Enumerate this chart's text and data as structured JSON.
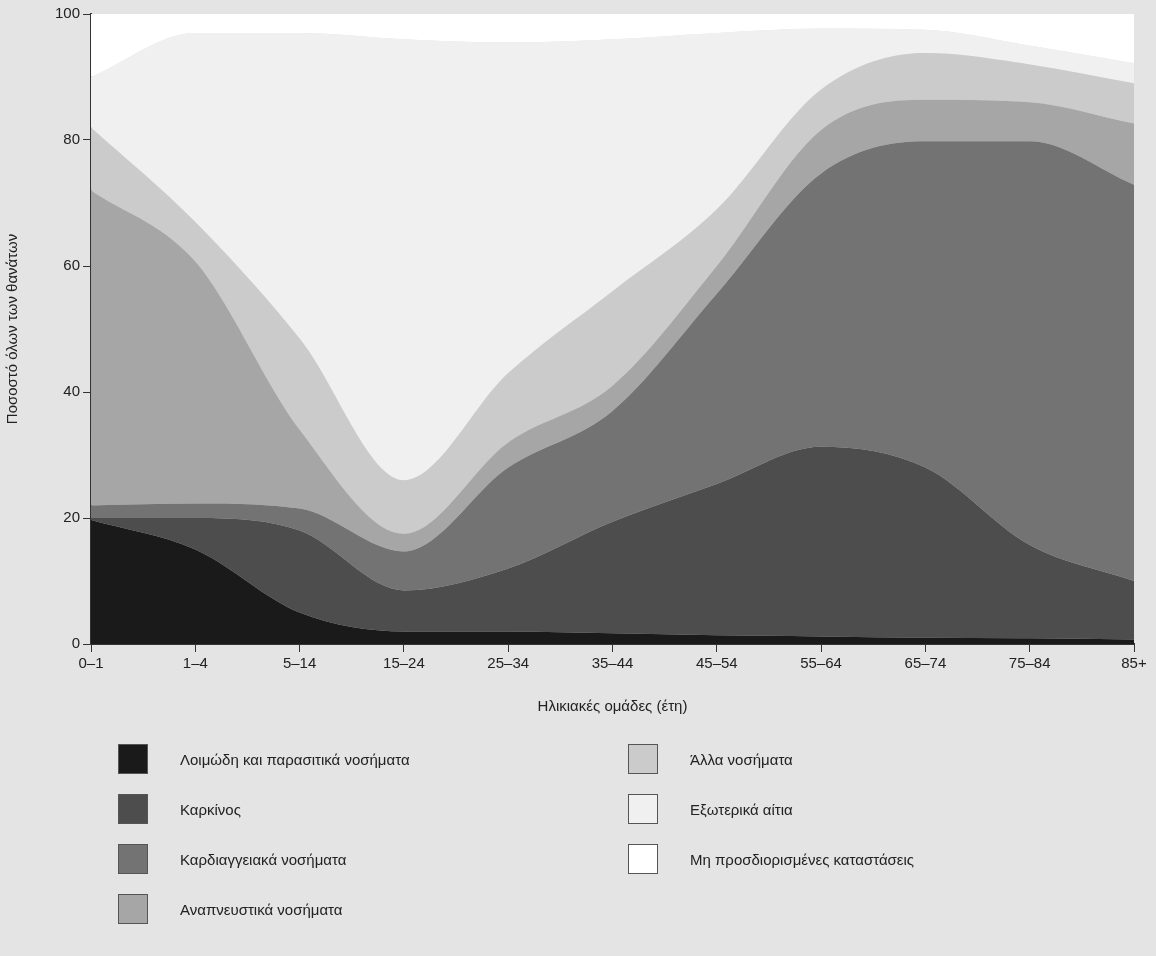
{
  "chart_data": {
    "type": "area",
    "stacked": true,
    "xlabel": "Ηλικιακές ομάδες (έτη)",
    "ylabel": "Ποσοστό όλων των θανάτων",
    "categories": [
      "0–1",
      "1–4",
      "5–14",
      "15–24",
      "25–34",
      "35–44",
      "45–54",
      "55–64",
      "65–74",
      "75–84",
      "85+"
    ],
    "ylim": [
      0,
      100
    ],
    "yticks": [
      0,
      20,
      40,
      60,
      80,
      100
    ],
    "grid": false,
    "legend": "bottom",
    "series": [
      {
        "name": "Λοιμώδη και παρασιτικά νοσήματα",
        "color": "#1a1a1a",
        "values": [
          19.7,
          15,
          5,
          2,
          2,
          1.7,
          1.4,
          1.2,
          1,
          0.9,
          0.7
        ]
      },
      {
        "name": "Καρκίνος",
        "color": "#4d4d4d",
        "values": [
          0.3,
          5,
          13,
          6.5,
          10,
          17.7,
          24,
          30.1,
          27,
          14.8,
          9.3
        ]
      },
      {
        "name": "Καρδιαγγειακά νοσήματα",
        "color": "#737373",
        "values": [
          2,
          2.3,
          3.5,
          6.2,
          16,
          17.6,
          30.2,
          43.4,
          51.8,
          64.1,
          62.9
        ]
      },
      {
        "name": "Αναπνευστικά νοσήματα",
        "color": "#a6a6a6",
        "values": [
          50,
          38.4,
          12.5,
          2.8,
          4,
          4,
          4.4,
          6.9,
          6.6,
          6.2,
          9.7
        ]
      },
      {
        "name": "Άλλα νοσήματα",
        "color": "#cbcbcb",
        "values": [
          10,
          6.3,
          14.5,
          8.5,
          11,
          15,
          9,
          6.4,
          7.4,
          6,
          6.4
        ]
      },
      {
        "name": "Εξωτερικά αίτια",
        "color": "#f0f0f0",
        "values": [
          8,
          30,
          48.5,
          70,
          52.5,
          40,
          28,
          9.7,
          3.7,
          3,
          3.2
        ]
      },
      {
        "name": "Μη προσδιορισμένες καταστάσεις",
        "color": "#ffffff",
        "values": [
          10,
          3,
          3,
          4,
          4.5,
          4,
          3,
          2.3,
          2.5,
          5,
          7.8
        ]
      }
    ]
  }
}
